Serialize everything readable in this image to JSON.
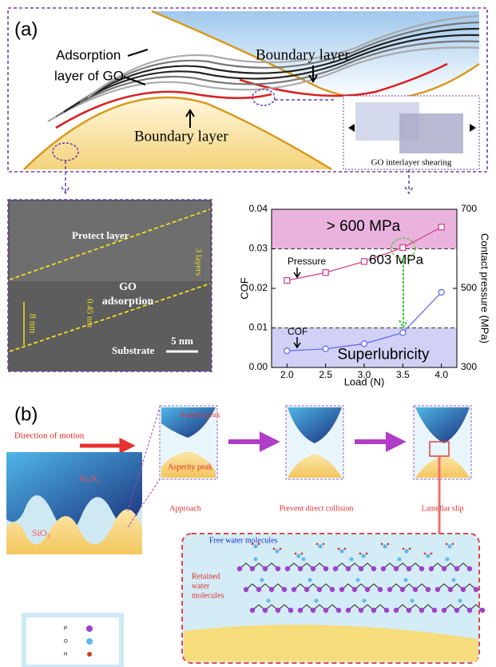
{
  "panel_a": {
    "label": "(a)",
    "adsorption_label": [
      "Adsorption",
      "layer of GO"
    ],
    "boundary_top": "Boundary layer",
    "boundary_bottom": "Boundary layer",
    "shearing_label": "GO interlayer shearing",
    "tem": {
      "protect": "Protect layer",
      "go": [
        "GO",
        "adsorption"
      ],
      "layers": "3 layers",
      "spacing": "0.45 nm",
      "thickness": "8 nm",
      "substrate": "Substrate",
      "scale": "5 nm"
    }
  },
  "chart_data": {
    "type": "line",
    "x": [
      2.0,
      2.5,
      3.0,
      3.5,
      4.0
    ],
    "series": [
      {
        "name": "COF",
        "color": "#6a6af0",
        "marker": "circle",
        "values": [
          0.0042,
          0.0047,
          0.006,
          0.0088,
          0.019
        ]
      },
      {
        "name": "Pressure",
        "color": "#d0458a",
        "marker": "square",
        "axis": "y2",
        "values": [
          520,
          540,
          568,
          603,
          655
        ]
      }
    ],
    "xlim": [
      1.8,
      4.2
    ],
    "xticks": [
      {
        "value": 2,
        "label": "2.0"
      },
      {
        "value": 2.5,
        "label": "2.5"
      },
      {
        "value": 3,
        "label": "3.0"
      },
      {
        "value": 3.5,
        "label": "3.5"
      },
      {
        "value": 4,
        "label": "4.0"
      }
    ],
    "ylim": [
      0,
      0.04
    ],
    "yticks": [
      {
        "value": 0,
        "label": "0.00"
      },
      {
        "value": 0.01,
        "label": "0.01"
      },
      {
        "value": 0.02,
        "label": "0.02"
      },
      {
        "value": 0.03,
        "label": "0.03"
      },
      {
        "value": 0.04,
        "label": "0.04"
      }
    ],
    "y2lim": [
      300,
      700
    ],
    "y2ticks": [
      300,
      500,
      700
    ],
    "xlabel": "Load (N)",
    "ylabel": "COF",
    "y2label": "Contact pressure (MPa)",
    "regions": [
      {
        "axis": "y2",
        "range": [
          600,
          700
        ],
        "color": "#e6a6d8",
        "label": "> 600 MPa"
      },
      {
        "axis": "y",
        "range": [
          0,
          0.01
        ],
        "color": "#c9c9f5",
        "label": "Superlubricity"
      }
    ],
    "annotations": [
      "Pressure",
      "COF",
      "603 MPa"
    ]
  },
  "panel_b": {
    "label": "(b)",
    "motion": "Direction of motion",
    "top_material": "Si₃N₄",
    "bottom_material": "SiO₂",
    "asperity_top": "Asperity peak",
    "asperity_bottom": "Asperity peak",
    "steps": [
      "Approach",
      "Prevent direct collision",
      "Lamellar slip"
    ],
    "free_water": "Free water molecules",
    "retained_water": [
      "Retained",
      "water",
      "molecules"
    ],
    "legend": [
      "P",
      "O",
      "H"
    ]
  }
}
